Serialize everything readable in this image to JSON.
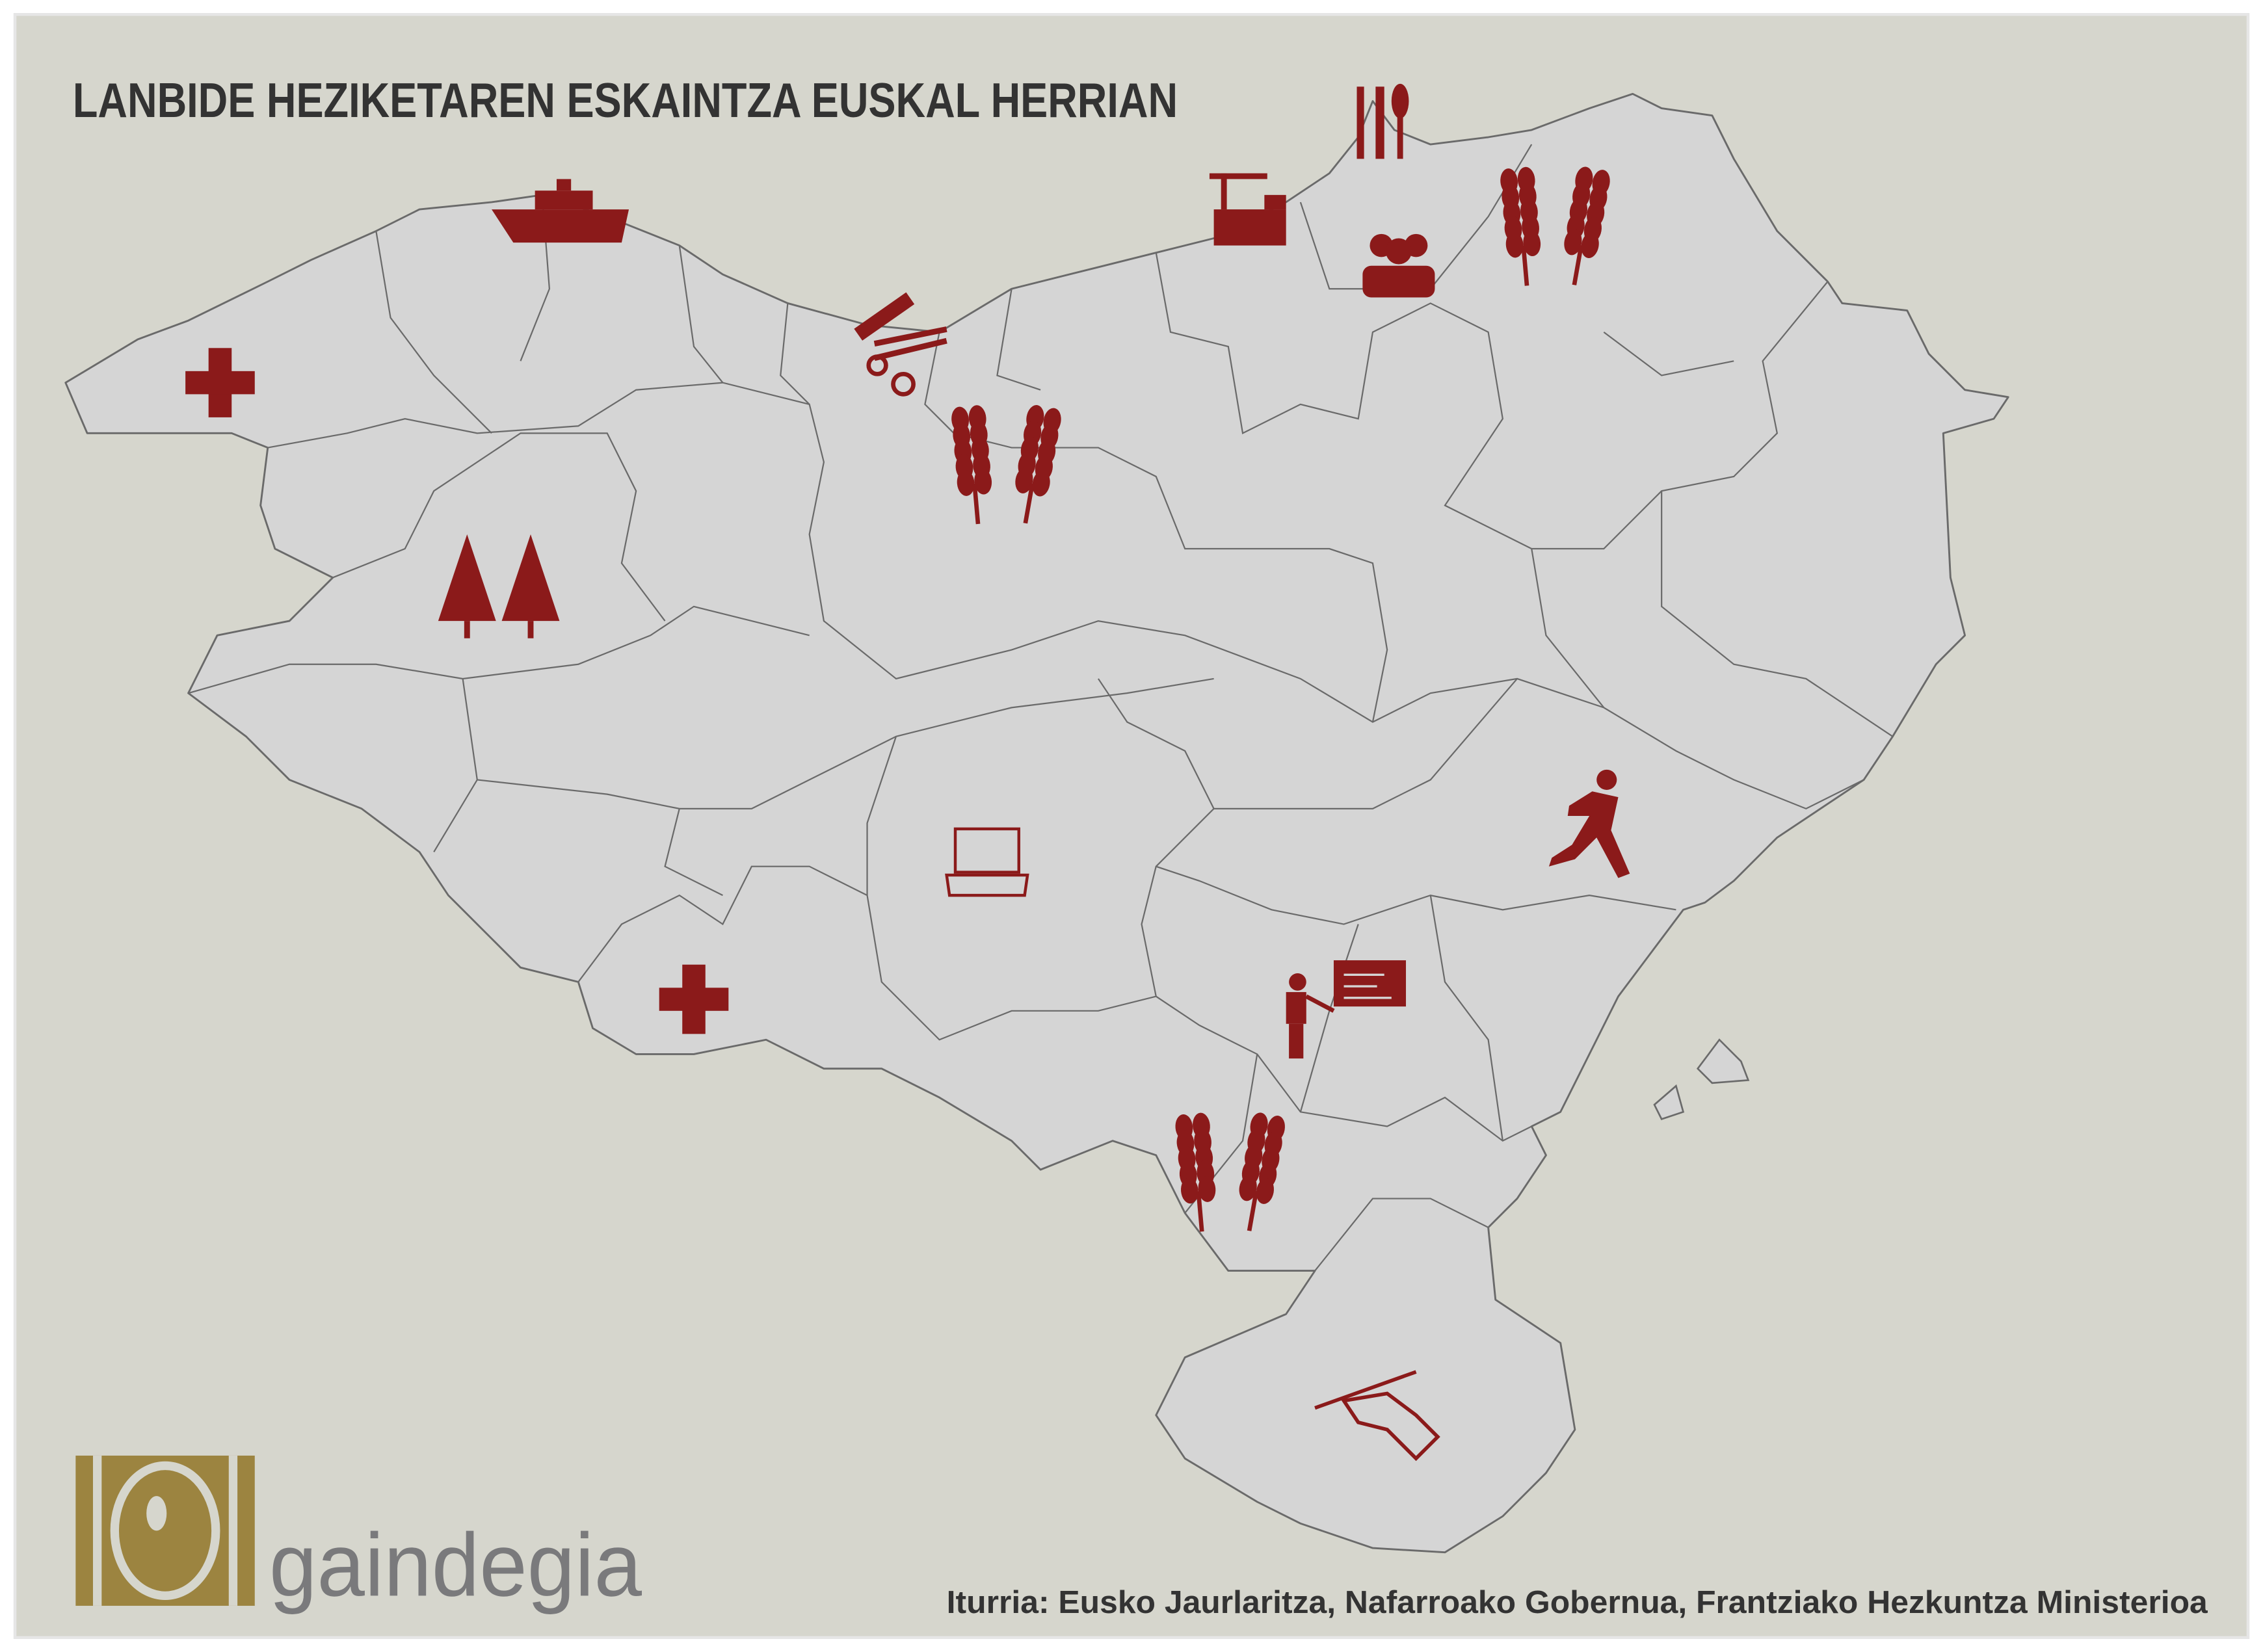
{
  "title": "LANBIDE HEZIKETAREN ESKAINTZA EUSKAL HERRIAN",
  "source": "Iturria: Eusko Jaurlaritza, Nafarroako Gobernua, Frantziako Hezkuntza Ministerioa",
  "logo": {
    "text": "gaindegia"
  },
  "colors": {
    "background": "#d6d6cd",
    "frame": "#ffffff",
    "map_fill": "#d5d5d5",
    "map_stroke": "#6a6a6a",
    "icon": "#8b1a1a",
    "title": "#333333",
    "logo_gold": "#9c8440",
    "logo_grey": "#7a7a7c"
  },
  "icons": [
    "medical-cross-icon",
    "boat-icon",
    "comb-scissors-icon",
    "wheat-icon",
    "trees-icon",
    "crane-building-icon",
    "cutlery-icon",
    "people-group-icon",
    "wheat-icon",
    "laptop-icon",
    "runner-icon",
    "teacher-board-icon",
    "medical-cross-icon",
    "wheat-icon",
    "hand-writing-icon"
  ]
}
